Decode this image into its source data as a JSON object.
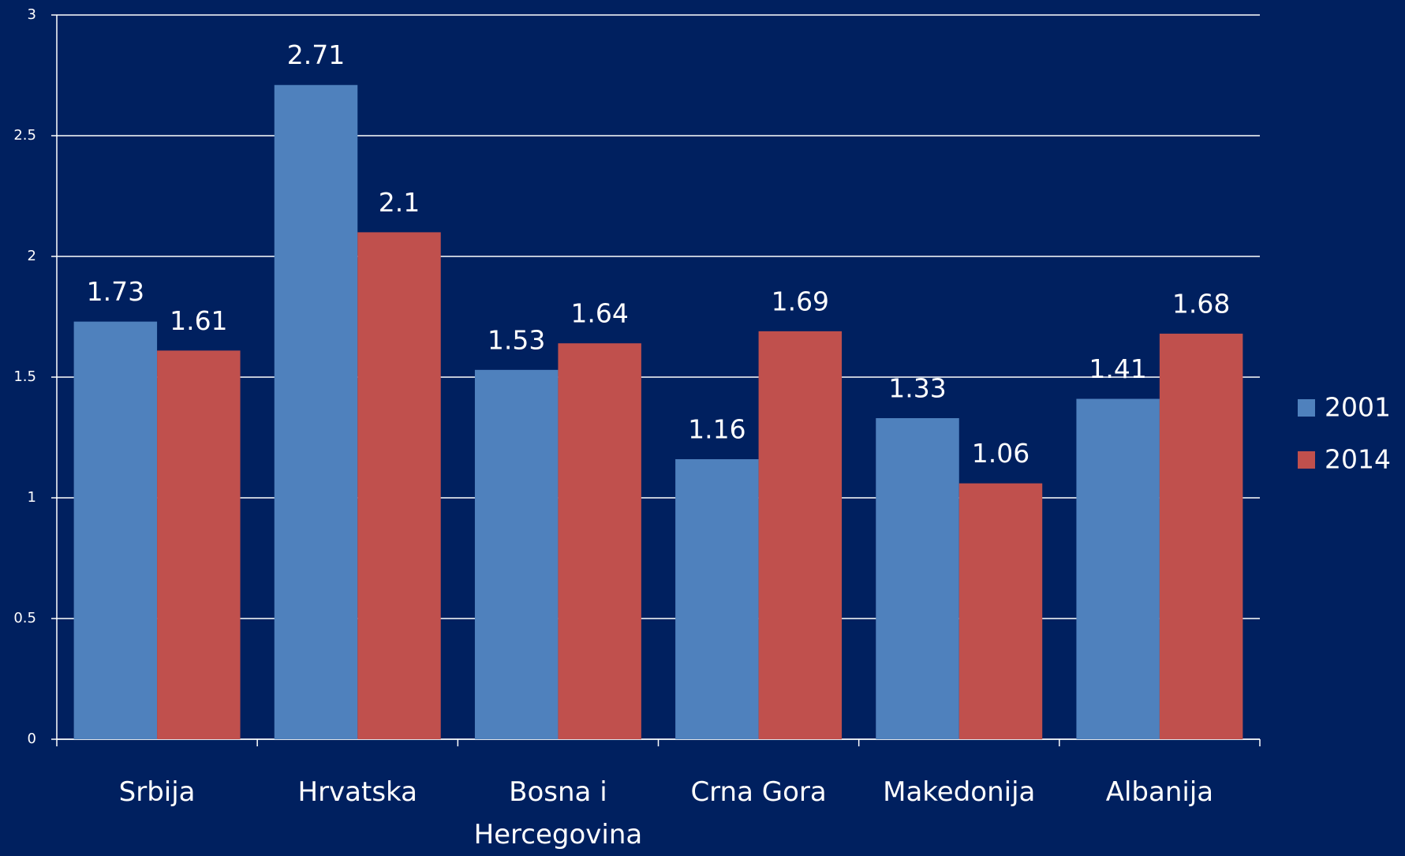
{
  "chart_data": {
    "type": "bar",
    "categories": [
      "Srbija",
      "Hrvatska",
      "Bosna i Hercegovina",
      "Crna Gora",
      "Makedonija",
      "Albanija"
    ],
    "series": [
      {
        "name": "2001",
        "color": "#4f81bd",
        "values": [
          1.73,
          2.71,
          1.53,
          1.16,
          1.33,
          1.41
        ]
      },
      {
        "name": "2014",
        "color": "#c0504d",
        "values": [
          1.61,
          2.1,
          1.64,
          1.69,
          1.06,
          1.68
        ]
      }
    ],
    "ylim": [
      0,
      3
    ],
    "yticks": [
      0,
      0.5,
      1,
      1.5,
      2,
      2.5,
      3
    ],
    "grid": true,
    "legend": "right"
  }
}
